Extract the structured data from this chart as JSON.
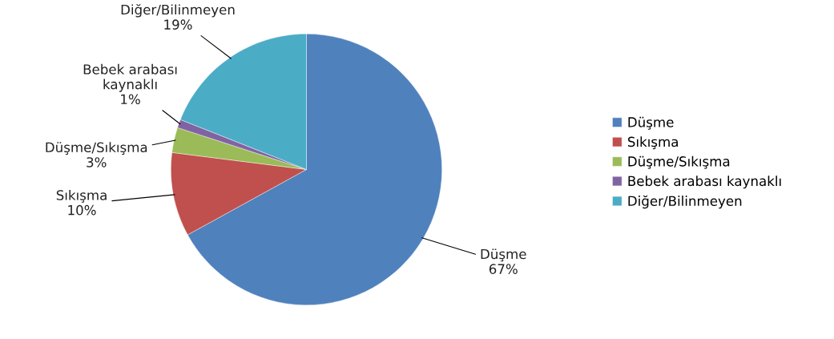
{
  "chart_data": {
    "type": "pie",
    "categories": [
      "Düşme",
      "Sıkışma",
      "Düşme/Sıkışma",
      "Bebek arabası kaynaklı",
      "Diğer/Bilinmeyen"
    ],
    "values": [
      67,
      10,
      3,
      1,
      19
    ],
    "value_labels": [
      "67%",
      "10%",
      "3%",
      "1%",
      "19%"
    ],
    "colors": [
      "#4f81bd",
      "#c0504d",
      "#9bbb59",
      "#8064a2",
      "#4bacc6"
    ],
    "legend": "right"
  }
}
